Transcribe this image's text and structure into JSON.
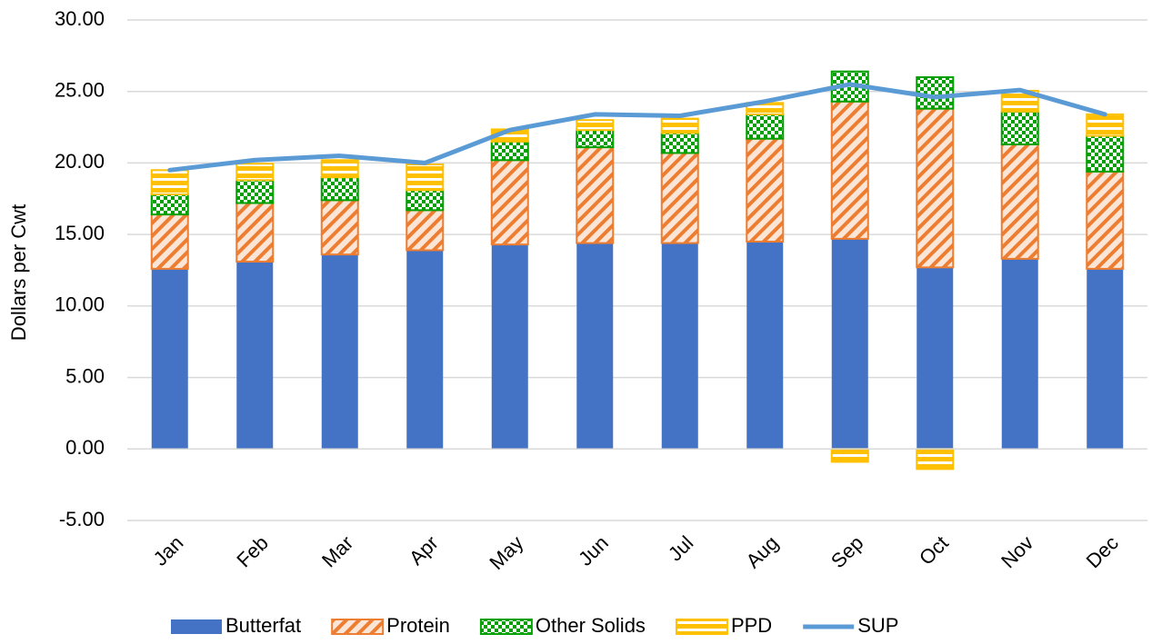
{
  "chart_data": {
    "type": "bar",
    "y_label": "Dollars per Cwt",
    "categories": [
      "Jan",
      "Feb",
      "Mar",
      "Apr",
      "May",
      "Jun",
      "Jul",
      "Aug",
      "Sep",
      "Oct",
      "Nov",
      "Dec"
    ],
    "series": [
      {
        "name": "Butterfat",
        "type": "bar",
        "color": "#4472c4",
        "pattern": "solid",
        "values": [
          12.6,
          13.1,
          13.6,
          13.9,
          14.3,
          14.4,
          14.4,
          14.5,
          14.7,
          12.7,
          13.3,
          12.6
        ]
      },
      {
        "name": "Protein",
        "type": "bar",
        "color": "#ed7d31",
        "pattern": "diagonal",
        "values": [
          3.8,
          4.1,
          3.8,
          2.8,
          5.9,
          6.7,
          6.3,
          7.2,
          9.6,
          11.1,
          8.0,
          6.8
        ]
      },
      {
        "name": "Other Solids",
        "type": "bar",
        "color": "#00a000",
        "pattern": "checker",
        "values": [
          1.4,
          1.6,
          1.6,
          1.4,
          1.3,
          1.2,
          1.4,
          1.7,
          2.1,
          2.2,
          2.3,
          2.5
        ]
      },
      {
        "name": "PPD",
        "type": "bar",
        "color": "#ffc000",
        "pattern": "stripes",
        "values": [
          1.7,
          1.15,
          1.2,
          1.8,
          0.85,
          0.7,
          1.0,
          0.8,
          -0.9,
          -1.4,
          1.45,
          1.5
        ]
      },
      {
        "name": "SUP",
        "type": "line",
        "color": "#5b9bd5",
        "values": [
          19.5,
          20.2,
          20.5,
          20.0,
          22.3,
          23.4,
          23.3,
          24.3,
          25.5,
          24.6,
          25.1,
          23.4
        ]
      }
    ],
    "stacked": true,
    "ylim": [
      -5,
      30
    ],
    "yticks": [
      {
        "value": -5,
        "label": "-5.00"
      },
      {
        "value": 0,
        "label": "0.00"
      },
      {
        "value": 5,
        "label": "5.00"
      },
      {
        "value": 10,
        "label": "10.00"
      },
      {
        "value": 15,
        "label": "15.00"
      },
      {
        "value": 20,
        "label": "20.00"
      },
      {
        "value": 25,
        "label": "25.00"
      },
      {
        "value": 30,
        "label": "30.00"
      }
    ],
    "grid": true,
    "legend": "bottom"
  }
}
